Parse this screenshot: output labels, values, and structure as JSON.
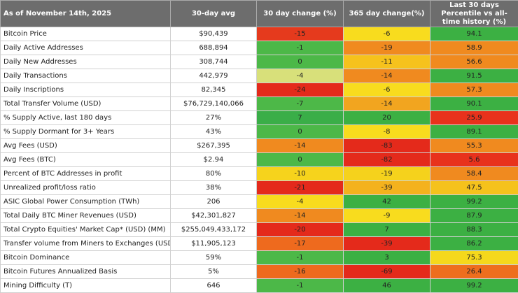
{
  "table": {
    "header": [
      "As of November 14th, 2025",
      "30-day avg",
      "30 day change (%)",
      "365 day change(%)",
      "Last 30 days Percentile vs all-time history (%)"
    ],
    "rows": [
      [
        "Bitcoin Price",
        "$90,439",
        -15,
        -6,
        94.1
      ],
      [
        "Daily Active Addresses",
        "688,894",
        -1,
        -19,
        58.9
      ],
      [
        "Daily New Addresses",
        "308,744",
        0,
        -11,
        56.6
      ],
      [
        "Daily Transactions",
        "442,979",
        -4,
        -14,
        91.5
      ],
      [
        "Daily Inscriptions",
        "82,345",
        -24,
        -6,
        57.3
      ],
      [
        "Total Transfer Volume (USD)",
        "$76,729,140,066",
        -7,
        -14,
        90.1
      ],
      [
        "% Supply Active, last 180 days",
        "27%",
        7,
        20,
        25.9
      ],
      [
        "% Supply Dormant for 3+ Years",
        "43%",
        0,
        -8,
        89.1
      ],
      [
        "Avg Fees (USD)",
        "$267,395",
        -14,
        -83,
        55.3
      ],
      [
        "Avg Fees (BTC)",
        "$2.94",
        0,
        -82,
        5.6
      ],
      [
        "Percent of BTC Addresses in profit",
        "80%",
        -10,
        -19,
        58.4
      ],
      [
        "Unrealized profit/loss ratio",
        "38%",
        -21,
        -39,
        47.5
      ],
      [
        "ASIC Global Power Consumption (TWh)",
        "206",
        -4,
        42,
        99.2
      ],
      [
        "Total Daily BTC Miner Revenues (USD)",
        "$42,301,827",
        -14,
        -9,
        87.9
      ],
      [
        "Total Crypto Equities' Market Cap* (USD) (MM)",
        "$255,049,433,172",
        -20,
        7,
        88.3
      ],
      [
        "Transfer volume from Miners to Exchanges (USD)",
        "$11,905,123",
        -17,
        -39,
        86.2
      ],
      [
        "Bitcoin Dominance",
        "59%",
        -1,
        3,
        75.3
      ],
      [
        "Bitcoin Futures Annualized Basis",
        "5%",
        -16,
        -69,
        26.4
      ],
      [
        "Mining Difficulty (T)",
        "646",
        -1,
        46,
        99.2
      ]
    ],
    "colors": [
      [
        "#e53a1d",
        "#f8dc1e",
        "#3cb043"
      ],
      [
        "#4cb848",
        "#f08a1f",
        "#f08a1f"
      ],
      [
        "#4cb848",
        "#f6c21c",
        "#f08a1f"
      ],
      [
        "#d8e07a",
        "#f08a1f",
        "#3cb043"
      ],
      [
        "#e42a1b",
        "#f8dc1e",
        "#f08a1f"
      ],
      [
        "#4db848",
        "#f2a51f",
        "#3cb043"
      ],
      [
        "#3aae48",
        "#3cb043",
        "#e8321c"
      ],
      [
        "#4cb848",
        "#f8dc1e",
        "#3cb043"
      ],
      [
        "#f08a1f",
        "#e42a1b",
        "#f08a1f"
      ],
      [
        "#4cb848",
        "#e42a1b",
        "#e8321c"
      ],
      [
        "#f6d31c",
        "#f5d21c",
        "#f08a1f"
      ],
      [
        "#e42a1b",
        "#f4b21d",
        "#f5c21c"
      ],
      [
        "#f8dc1e",
        "#3cb043",
        "#3cb043"
      ],
      [
        "#f08a1f",
        "#f8dc1e",
        "#3cb043"
      ],
      [
        "#e42a1b",
        "#3cb043",
        "#3cb043"
      ],
      [
        "#ee6a1e",
        "#e42a1b",
        "#3cb043"
      ],
      [
        "#4cb848",
        "#3cb043",
        "#f5d81c"
      ],
      [
        "#ee6a1e",
        "#e42a1b",
        "#ee6e1e"
      ],
      [
        "#4cb848",
        "#3cb043",
        "#3cb043"
      ]
    ]
  }
}
